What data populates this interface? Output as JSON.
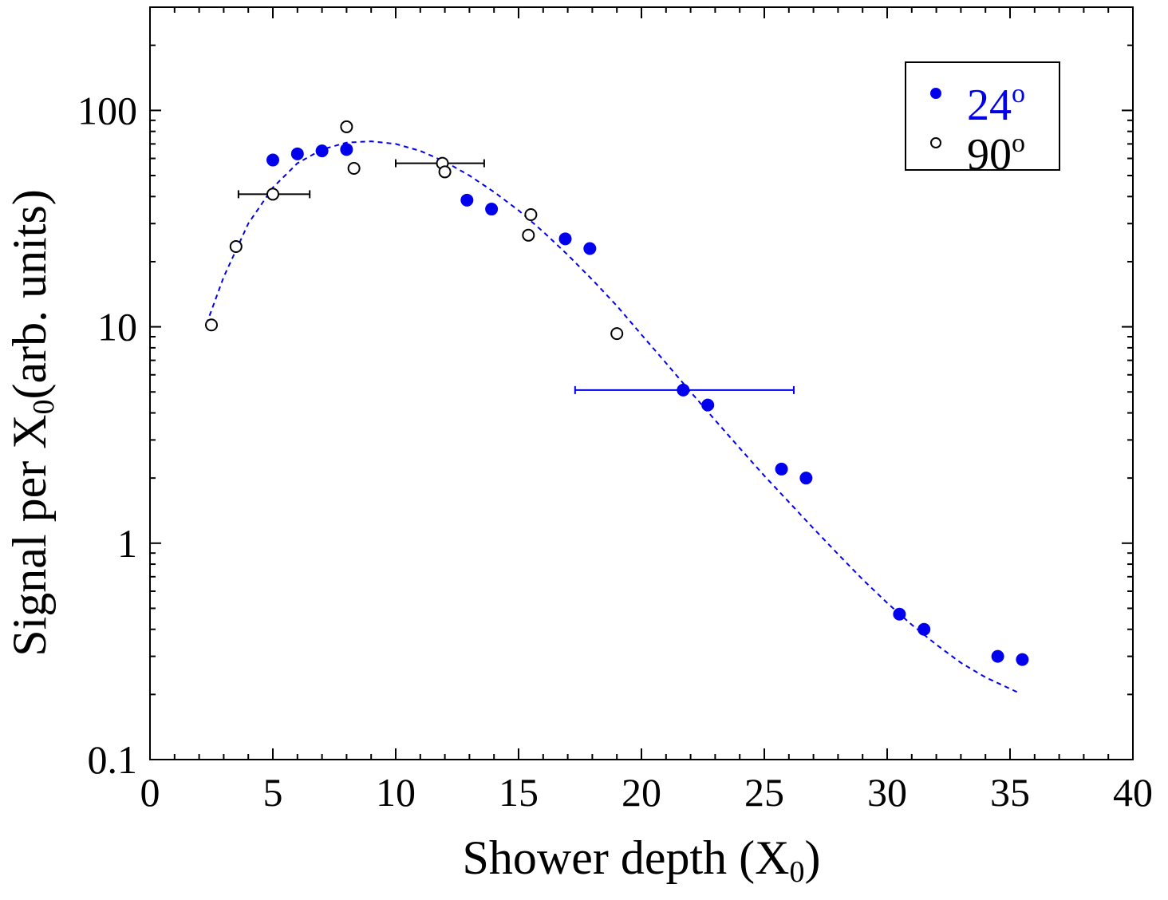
{
  "chart_data": {
    "type": "scatter",
    "xlabel": {
      "main": "Shower depth (X",
      "sub": "0",
      "end": ")"
    },
    "ylabel": {
      "main": "Signal per X",
      "sub": "0",
      "end": "(arb. units)"
    },
    "xlim": [
      0,
      40
    ],
    "ylim": [
      0.1,
      300
    ],
    "yscale": "log",
    "x_ticks": [
      0,
      5,
      10,
      15,
      20,
      25,
      30,
      35,
      40
    ],
    "x_tick_labels": [
      "0",
      "5",
      "10",
      "15",
      "20",
      "25",
      "30",
      "35",
      "40"
    ],
    "y_ticks": [
      0.1,
      1,
      10,
      100
    ],
    "y_tick_labels": [
      "0.1",
      "1",
      "10",
      "100"
    ],
    "grid": false,
    "legend_position": "top-right",
    "series": [
      {
        "name": "24",
        "name_superscript": "o",
        "color": "#0000ee",
        "marker": "filled-circle",
        "points": [
          {
            "x": 5.0,
            "y": 59
          },
          {
            "x": 6.0,
            "y": 63
          },
          {
            "x": 7.0,
            "y": 65
          },
          {
            "x": 8.0,
            "y": 66
          },
          {
            "x": 12.9,
            "y": 38.5
          },
          {
            "x": 13.9,
            "y": 35
          },
          {
            "x": 16.9,
            "y": 25.5
          },
          {
            "x": 17.9,
            "y": 23
          },
          {
            "x": 21.7,
            "y": 5.1
          },
          {
            "x": 22.7,
            "y": 4.35
          },
          {
            "x": 25.7,
            "y": 2.2
          },
          {
            "x": 26.7,
            "y": 2.0
          },
          {
            "x": 30.5,
            "y": 0.47
          },
          {
            "x": 31.5,
            "y": 0.4
          },
          {
            "x": 34.5,
            "y": 0.3
          },
          {
            "x": 35.5,
            "y": 0.29
          }
        ],
        "error_bars": [
          {
            "x": 21.7,
            "y": 5.1,
            "xerr_low": 17.3,
            "xerr_high": 26.2
          }
        ]
      },
      {
        "name": "90",
        "name_superscript": "o",
        "color": "#000000",
        "marker": "open-circle",
        "points": [
          {
            "x": 2.5,
            "y": 10.2
          },
          {
            "x": 3.5,
            "y": 23.5
          },
          {
            "x": 5.0,
            "y": 41
          },
          {
            "x": 8.0,
            "y": 84
          },
          {
            "x": 8.3,
            "y": 54
          },
          {
            "x": 11.9,
            "y": 57
          },
          {
            "x": 12.0,
            "y": 52
          },
          {
            "x": 15.4,
            "y": 26.5
          },
          {
            "x": 15.5,
            "y": 33
          },
          {
            "x": 19.0,
            "y": 9.3
          }
        ],
        "error_bars": [
          {
            "x": 5.0,
            "y": 41,
            "xerr_low": 3.6,
            "xerr_high": 6.5
          },
          {
            "x": 11.9,
            "y": 57,
            "xerr_low": 10.0,
            "xerr_high": 13.6
          }
        ]
      }
    ],
    "fit_curve": {
      "color": "#0000ee",
      "style": "dashed",
      "points": [
        [
          2.3,
          10.3
        ],
        [
          3.0,
          17
        ],
        [
          4.0,
          30
        ],
        [
          5.0,
          44
        ],
        [
          6.0,
          57
        ],
        [
          7.0,
          66
        ],
        [
          8.0,
          71
        ],
        [
          9.0,
          72
        ],
        [
          10.0,
          70
        ],
        [
          11.0,
          65
        ],
        [
          12.0,
          58
        ],
        [
          13.0,
          50
        ],
        [
          14.0,
          42
        ],
        [
          15.0,
          34.5
        ],
        [
          16.0,
          27.5
        ],
        [
          17.0,
          21.5
        ],
        [
          18.0,
          16.5
        ],
        [
          19.0,
          12.5
        ],
        [
          20.0,
          9.2
        ],
        [
          21.0,
          6.8
        ],
        [
          22.0,
          5.0
        ],
        [
          23.0,
          3.7
        ],
        [
          24.0,
          2.75
        ],
        [
          25.0,
          2.05
        ],
        [
          26.0,
          1.55
        ],
        [
          27.0,
          1.17
        ],
        [
          28.0,
          0.89
        ],
        [
          29.0,
          0.68
        ],
        [
          30.0,
          0.53
        ],
        [
          31.0,
          0.42
        ],
        [
          32.0,
          0.34
        ],
        [
          33.0,
          0.28
        ],
        [
          34.0,
          0.24
        ],
        [
          35.3,
          0.205
        ]
      ]
    }
  }
}
